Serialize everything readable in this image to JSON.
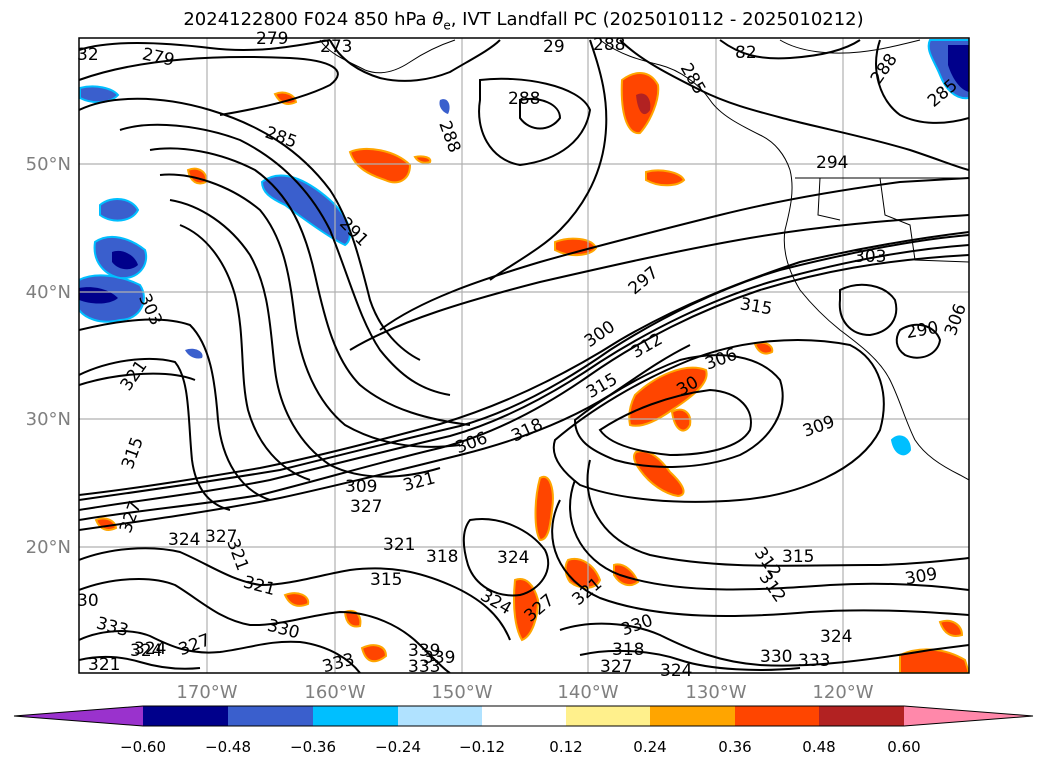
{
  "title": {
    "prefix": "2024122800 F024 850 hPa ",
    "symbol": "θ",
    "subscript": "e",
    "suffix": ", IVT Landfall PC (2025010112 - 2025010212)"
  },
  "map": {
    "lon_labels": [
      "170°W",
      "160°W",
      "150°W",
      "140°W",
      "130°W",
      "120°W"
    ],
    "lat_labels": [
      "50°N",
      "40°N",
      "30°N",
      "20°N"
    ],
    "theta_e_labels": [
      "32",
      "279",
      "279",
      "273",
      "29",
      "288",
      "82",
      "288",
      "285",
      "288",
      "288",
      "294",
      "285",
      "285",
      "291",
      "297",
      "303",
      "303",
      "300",
      "312",
      "315",
      "306",
      "30",
      "315",
      "309",
      "312",
      "318",
      "306",
      "309",
      "327",
      "321",
      "321",
      "315",
      "327",
      "324",
      "327",
      "321",
      "321",
      "318",
      "324",
      "321",
      "315",
      "324",
      "327",
      "339",
      "321",
      "324",
      "315",
      "312",
      "309",
      "321",
      "333",
      "327",
      "324",
      "330",
      "333",
      "339",
      "333",
      "330",
      "318",
      "327",
      "324",
      "333",
      "330",
      "324",
      "30",
      "290",
      "306"
    ],
    "colors": {
      "contour": "#000000",
      "grid": "#b0b0b0",
      "ocean": "#ffffff"
    }
  },
  "colorbar": {
    "tick_labels": [
      "−0.60",
      "−0.48",
      "−0.36",
      "−0.24",
      "−0.12",
      "0.12",
      "0.24",
      "0.36",
      "0.48",
      "0.60"
    ],
    "colors": [
      "#9a32cd",
      "#00008b",
      "#3a5fcd",
      "#00bfff",
      "#b0e2ff",
      "#ffffff",
      "#fff08c",
      "#ffa500",
      "#ff4500",
      "#b22222",
      "#ff88aa"
    ]
  }
}
